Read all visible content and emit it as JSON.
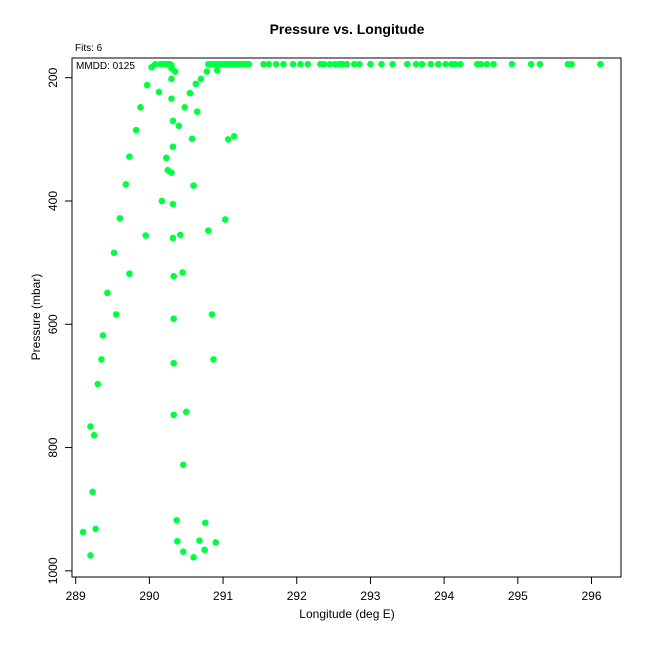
{
  "chart_data": {
    "type": "scatter",
    "title": "Pressure vs. Longitude",
    "xlabel": "Longitude (deg E)",
    "ylabel": "Pressure (mbar)",
    "fits_label": "Fits: 6",
    "mmdd_label": "MMDD: 0125",
    "xlim": [
      288.95,
      296.4
    ],
    "ylim": [
      1010,
      168
    ],
    "y_reversed": true,
    "x_ticks": [
      289,
      290,
      291,
      292,
      293,
      294,
      295,
      296
    ],
    "y_ticks": [
      200,
      400,
      600,
      800,
      1000
    ],
    "grid": false,
    "marker_color": "#00ff40",
    "points": [
      [
        289.1,
        937
      ],
      [
        289.2,
        975
      ],
      [
        289.27,
        932
      ],
      [
        289.23,
        872
      ],
      [
        289.2,
        766
      ],
      [
        289.25,
        780
      ],
      [
        289.3,
        697
      ],
      [
        289.35,
        657
      ],
      [
        289.37,
        618
      ],
      [
        289.43,
        549
      ],
      [
        289.52,
        484
      ],
      [
        289.55,
        584
      ],
      [
        289.6,
        428
      ],
      [
        289.68,
        373
      ],
      [
        289.73,
        518
      ],
      [
        289.73,
        328
      ],
      [
        289.82,
        285
      ],
      [
        289.88,
        248
      ],
      [
        289.95,
        456
      ],
      [
        289.97,
        212
      ],
      [
        290.03,
        183
      ],
      [
        290.08,
        178
      ],
      [
        290.13,
        223
      ],
      [
        290.15,
        178
      ],
      [
        290.17,
        400
      ],
      [
        290.2,
        178
      ],
      [
        290.22,
        178
      ],
      [
        290.23,
        330
      ],
      [
        290.25,
        178
      ],
      [
        290.25,
        350
      ],
      [
        290.28,
        178
      ],
      [
        290.3,
        180
      ],
      [
        290.3,
        185
      ],
      [
        290.3,
        202
      ],
      [
        290.3,
        234
      ],
      [
        290.32,
        270
      ],
      [
        290.32,
        312
      ],
      [
        290.3,
        354
      ],
      [
        290.32,
        405
      ],
      [
        290.32,
        460
      ],
      [
        290.33,
        522
      ],
      [
        290.33,
        591
      ],
      [
        290.33,
        663
      ],
      [
        290.33,
        747
      ],
      [
        290.35,
        190
      ],
      [
        290.37,
        918
      ],
      [
        290.38,
        952
      ],
      [
        290.4,
        278
      ],
      [
        290.42,
        455
      ],
      [
        290.45,
        516
      ],
      [
        290.46,
        828
      ],
      [
        290.46,
        969
      ],
      [
        290.48,
        248
      ],
      [
        290.5,
        742
      ],
      [
        290.55,
        225
      ],
      [
        290.58,
        299
      ],
      [
        290.6,
        375
      ],
      [
        290.6,
        978
      ],
      [
        290.63,
        210
      ],
      [
        290.65,
        255
      ],
      [
        290.68,
        951
      ],
      [
        290.7,
        202
      ],
      [
        290.75,
        966
      ],
      [
        290.76,
        922
      ],
      [
        290.78,
        190
      ],
      [
        290.8,
        448
      ],
      [
        290.8,
        178
      ],
      [
        290.83,
        178
      ],
      [
        290.85,
        584
      ],
      [
        290.87,
        657
      ],
      [
        290.88,
        178
      ],
      [
        290.9,
        954
      ],
      [
        290.92,
        188
      ],
      [
        290.93,
        178
      ],
      [
        290.97,
        178
      ],
      [
        291.0,
        178
      ],
      [
        291.02,
        178
      ],
      [
        291.03,
        430
      ],
      [
        291.05,
        178
      ],
      [
        291.07,
        300
      ],
      [
        291.08,
        178
      ],
      [
        291.12,
        178
      ],
      [
        291.15,
        295
      ],
      [
        291.15,
        178
      ],
      [
        291.18,
        178
      ],
      [
        291.22,
        178
      ],
      [
        291.25,
        178
      ],
      [
        291.28,
        178
      ],
      [
        291.32,
        178
      ],
      [
        291.35,
        178
      ],
      [
        291.55,
        178
      ],
      [
        291.62,
        178
      ],
      [
        291.72,
        178
      ],
      [
        291.82,
        178
      ],
      [
        291.95,
        178
      ],
      [
        292.05,
        178
      ],
      [
        292.15,
        178
      ],
      [
        292.32,
        178
      ],
      [
        292.37,
        178
      ],
      [
        292.45,
        178
      ],
      [
        292.52,
        178
      ],
      [
        292.58,
        178
      ],
      [
        292.62,
        178
      ],
      [
        292.68,
        178
      ],
      [
        292.78,
        178
      ],
      [
        292.85,
        178
      ],
      [
        293.0,
        178
      ],
      [
        293.15,
        178
      ],
      [
        293.3,
        178
      ],
      [
        293.5,
        178
      ],
      [
        293.62,
        178
      ],
      [
        293.7,
        178
      ],
      [
        293.82,
        178
      ],
      [
        293.92,
        178
      ],
      [
        294.02,
        178
      ],
      [
        294.1,
        178
      ],
      [
        294.15,
        178
      ],
      [
        294.22,
        178
      ],
      [
        294.45,
        178
      ],
      [
        294.5,
        178
      ],
      [
        294.58,
        178
      ],
      [
        294.67,
        178
      ],
      [
        294.92,
        178
      ],
      [
        295.18,
        178
      ],
      [
        295.3,
        178
      ],
      [
        295.68,
        178
      ],
      [
        295.73,
        178
      ],
      [
        296.12,
        178
      ]
    ]
  }
}
